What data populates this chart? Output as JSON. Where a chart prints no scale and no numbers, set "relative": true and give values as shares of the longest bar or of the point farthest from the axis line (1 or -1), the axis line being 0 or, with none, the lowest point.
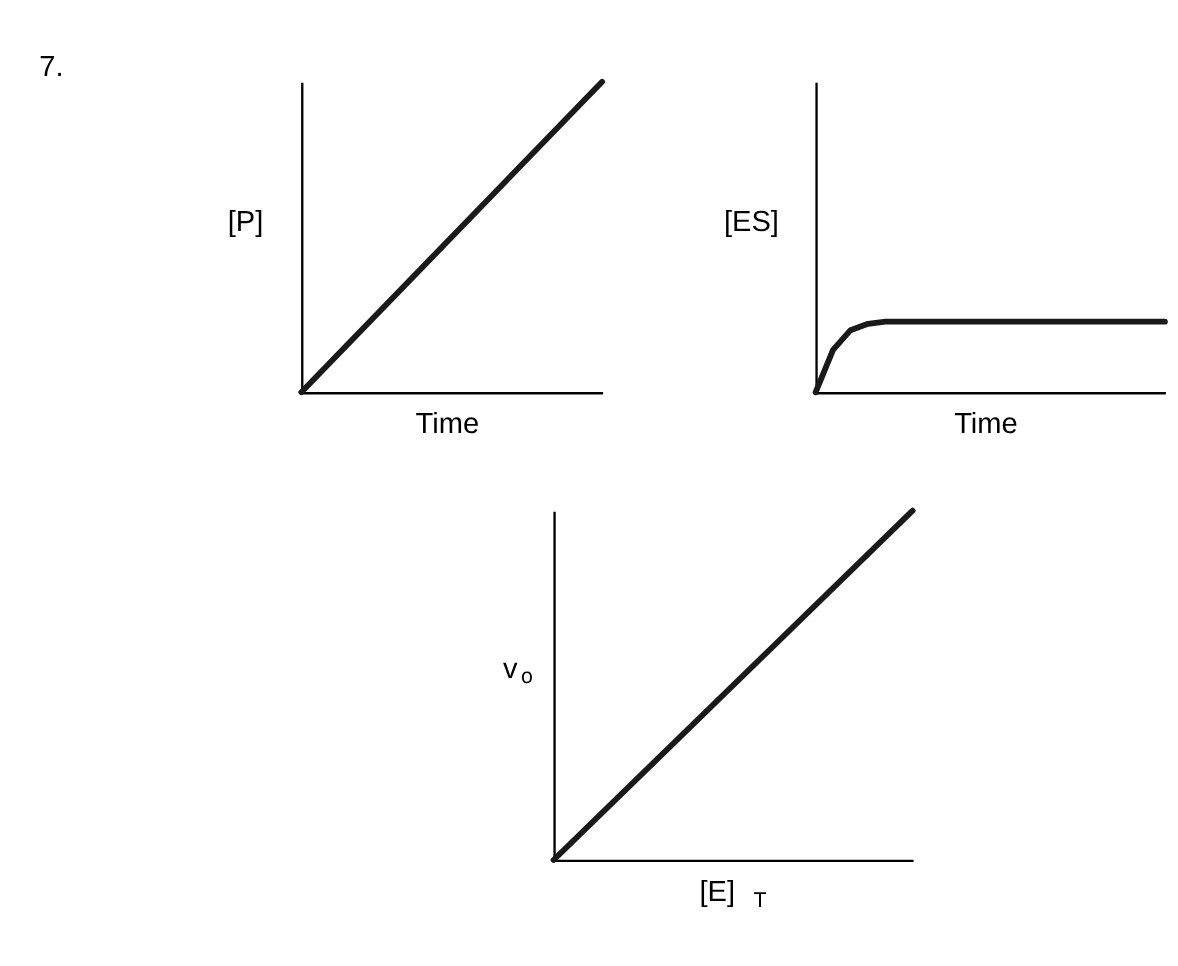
{
  "chart_data": [
    {
      "type": "line",
      "relative": true,
      "xlabel": "Time",
      "ylabel": "[P]",
      "annotations": [
        "7."
      ],
      "categories": [
        null,
        null
      ],
      "series": [
        {
          "color": "#1a1a1a",
          "values": [
            0,
            1
          ]
        }
      ],
      "tick_labels": false
    },
    {
      "type": "line",
      "relative": true,
      "xlabel": "Time",
      "ylabel": "[ES]",
      "categories": [
        null,
        null,
        null,
        null,
        null,
        null,
        null,
        null,
        null,
        null,
        null,
        null,
        null,
        null,
        null,
        null,
        null,
        null,
        null,
        null,
        null
      ],
      "series": [
        {
          "color": "#1a1a1a",
          "values": [
            0,
            0.6,
            0.88,
            0.97,
            1,
            1,
            1,
            1,
            1,
            1,
            1,
            1,
            1,
            1,
            1,
            1,
            1,
            1,
            1,
            1,
            1
          ]
        }
      ],
      "tick_labels": false
    },
    {
      "type": "line",
      "relative": true,
      "xlabel": "[E]$_{T}$",
      "ylabel": "v$_{o}$",
      "categories": [
        null,
        null
      ],
      "series": [
        {
          "color": "#1a1a1a",
          "values": [
            0,
            1
          ]
        }
      ],
      "tick_labels": false
    }
  ]
}
